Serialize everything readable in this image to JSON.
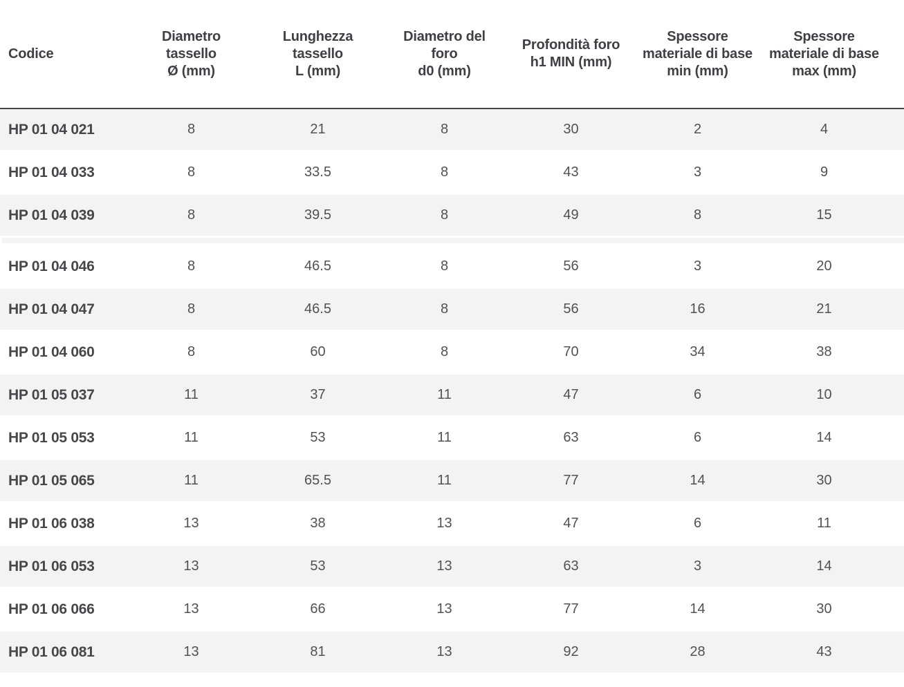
{
  "table": {
    "columns": [
      {
        "id": "codice",
        "label": "Codice"
      },
      {
        "id": "diametro_tassello",
        "label": "Diametro\ntassello\nØ (mm)"
      },
      {
        "id": "lunghezza_tassello",
        "label": "Lunghezza\ntassello\nL (mm)"
      },
      {
        "id": "diametro_foro",
        "label": "Diametro del\nforo\nd0 (mm)"
      },
      {
        "id": "profondita_foro",
        "label": "Profondità foro\nh1 MIN (mm)"
      },
      {
        "id": "spessore_min",
        "label": "Spessore\nmateriale di base\nmin (mm)"
      },
      {
        "id": "spessore_max",
        "label": "Spessore\nmateriale di base\nmax (mm)"
      }
    ],
    "rows": [
      {
        "codice": "HP 01 04 021",
        "values": [
          "8",
          "21",
          "8",
          "30",
          "2",
          "4"
        ]
      },
      {
        "codice": "HP 01 04 033",
        "values": [
          "8",
          "33.5",
          "8",
          "43",
          "3",
          "9"
        ]
      },
      {
        "codice": "HP 01 04 039",
        "values": [
          "8",
          "39.5",
          "8",
          "49",
          "8",
          "15"
        ]
      },
      {
        "codice": "HP 01 04 046",
        "values": [
          "8",
          "46.5",
          "8",
          "56",
          "3",
          "20"
        ]
      },
      {
        "codice": "HP 01 04 047",
        "values": [
          "8",
          "46.5",
          "8",
          "56",
          "16",
          "21"
        ]
      },
      {
        "codice": "HP 01 04 060",
        "values": [
          "8",
          "60",
          "8",
          "70",
          "34",
          "38"
        ]
      },
      {
        "codice": "HP 01 05 037",
        "values": [
          "11",
          "37",
          "11",
          "47",
          "6",
          "10"
        ]
      },
      {
        "codice": "HP 01 05 053",
        "values": [
          "11",
          "53",
          "11",
          "63",
          "6",
          "14"
        ]
      },
      {
        "codice": "HP 01 05 065",
        "values": [
          "11",
          "65.5",
          "11",
          "77",
          "14",
          "30"
        ]
      },
      {
        "codice": "HP 01 06 038",
        "values": [
          "13",
          "38",
          "13",
          "47",
          "6",
          "11"
        ]
      },
      {
        "codice": "HP 01 06 053",
        "values": [
          "13",
          "53",
          "13",
          "63",
          "3",
          "14"
        ]
      },
      {
        "codice": "HP 01 06 066",
        "values": [
          "13",
          "66",
          "13",
          "77",
          "14",
          "30"
        ]
      },
      {
        "codice": "HP 01 06 081",
        "values": [
          "13",
          "81",
          "13",
          "92",
          "28",
          "43"
        ]
      }
    ]
  },
  "colors": {
    "row_stripe": "#f3f3f3",
    "header_border": "#46464a",
    "header_text": "#3f3f46",
    "code_text": "#47474b",
    "value_text": "#515156"
  }
}
